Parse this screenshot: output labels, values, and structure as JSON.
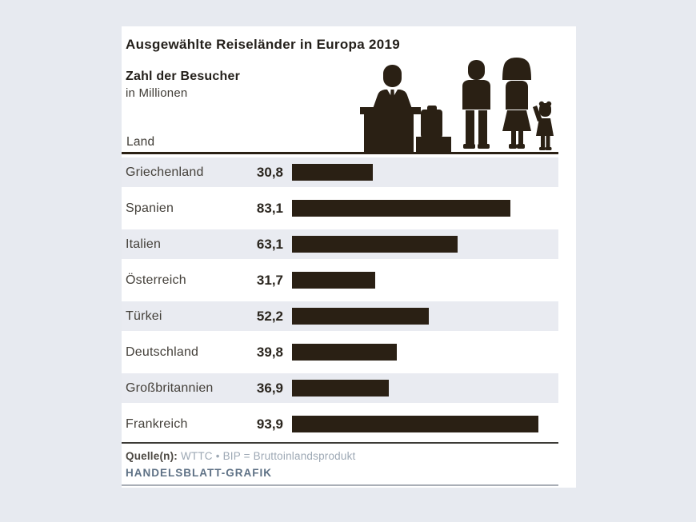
{
  "page": {
    "background": "#e7eaf0",
    "card_background": "#ffffff"
  },
  "header": {
    "title": "Ausgewählte Reiseländer in Europa 2019",
    "subtitle": "Zahl der Besucher",
    "unit": "in Millionen",
    "column_header": "Land"
  },
  "icons": {
    "pictogram": "hotel-reception-family-pictogram"
  },
  "chart_data": {
    "type": "bar",
    "orientation": "horizontal",
    "title": "Ausgewählte Reiseländer in Europa 2019",
    "xlabel": "Zahl der Besucher in Millionen",
    "categories": [
      "Griechenland",
      "Spanien",
      "Italien",
      "Österreich",
      "Türkei",
      "Deutschland",
      "Großbritannien",
      "Frankreich"
    ],
    "values": [
      30.8,
      83.1,
      63.1,
      31.7,
      52.2,
      39.8,
      36.9,
      93.9
    ],
    "value_labels": [
      "30,8",
      "83,1",
      "63,1",
      "31,7",
      "52,2",
      "39,8",
      "36,9",
      "93,9"
    ],
    "xlim": [
      0,
      100
    ],
    "grid": false,
    "legend": "none",
    "bar_color": "#2a2014",
    "stripe_color": "#e9ebf1"
  },
  "footer": {
    "source_label": "Quelle(n):",
    "source_text": "WTTC • BIP = Bruttoinlandsprodukt",
    "credit": "HANDELSBLATT-GRAFIK"
  }
}
